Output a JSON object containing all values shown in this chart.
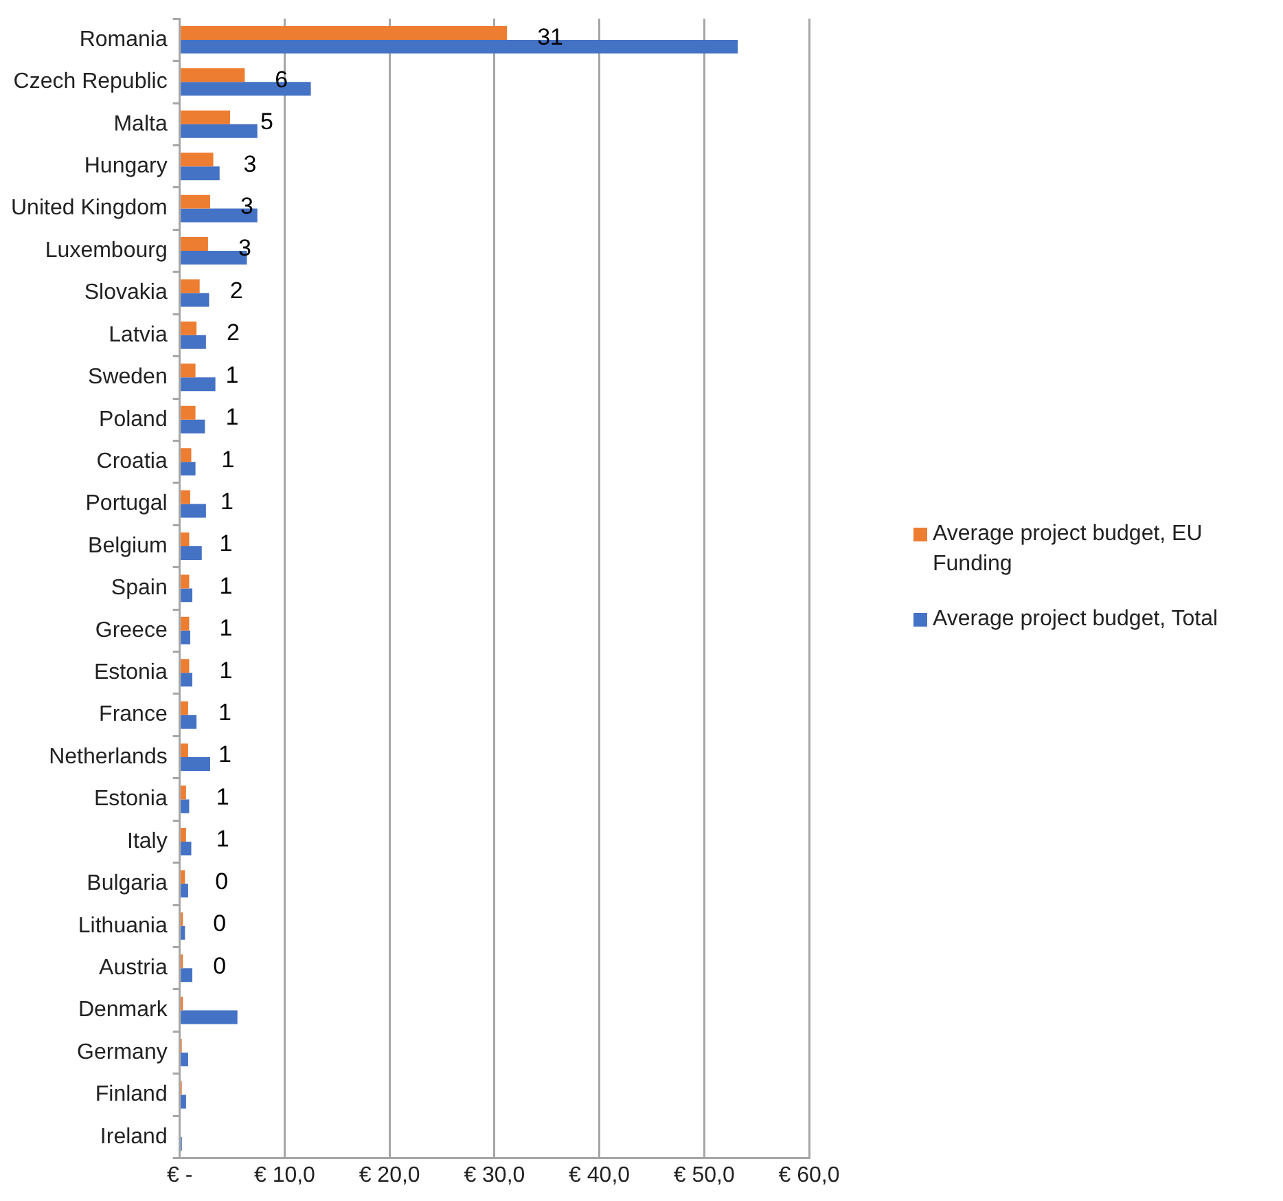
{
  "chart_data": {
    "type": "bar",
    "orientation": "horizontal",
    "categories": [
      "Romania",
      "Czech Republic",
      "Malta",
      "Hungary",
      "United Kingdom",
      "Luxembourg",
      "Slovakia",
      "Latvia",
      "Sweden",
      "Poland",
      "Croatia",
      "Portugal",
      "Belgium",
      "Spain",
      "Greece",
      "Estonia",
      "France",
      "Netherlands",
      "Estonia",
      "Italy",
      "Bulgaria",
      "Lithuania",
      "Austria",
      "Denmark",
      "Germany",
      "Finland",
      "Ireland"
    ],
    "series": [
      {
        "name": "Average project budget, EU Funding",
        "color": "#ed7d31",
        "values": [
          31.2,
          6.2,
          4.8,
          3.2,
          2.9,
          2.7,
          1.9,
          1.6,
          1.5,
          1.5,
          1.1,
          1.0,
          0.9,
          0.9,
          0.9,
          0.9,
          0.8,
          0.8,
          0.6,
          0.6,
          0.5,
          0.3,
          0.3,
          0.3,
          0.2,
          0.2,
          0
        ],
        "value_labels": [
          "31",
          "6",
          "5",
          "3",
          "3",
          "3",
          "2",
          "2",
          "1",
          "1",
          "1",
          "1",
          "1",
          "1",
          "1",
          "1",
          "1",
          "1",
          "1",
          "1",
          "0",
          "0",
          "0",
          null,
          null,
          null,
          null
        ]
      },
      {
        "name": "Average project budget, Total",
        "color": "#4472c4",
        "values": [
          53.2,
          12.5,
          7.4,
          3.8,
          7.4,
          6.4,
          2.8,
          2.5,
          3.4,
          2.4,
          1.5,
          2.5,
          2.1,
          1.2,
          1.0,
          1.2,
          1.6,
          2.9,
          0.9,
          1.1,
          0.8,
          0.5,
          1.2,
          5.5,
          0.8,
          0.6,
          0.2
        ]
      }
    ],
    "xlim": [
      0,
      60
    ],
    "xticks": [
      {
        "value": 0,
        "label": "€ -"
      },
      {
        "value": 10,
        "label": "€ 10,0"
      },
      {
        "value": 20,
        "label": "€ 20,0"
      },
      {
        "value": 30,
        "label": "€ 30,0"
      },
      {
        "value": 40,
        "label": "€ 40,0"
      },
      {
        "value": 50,
        "label": "€ 50,0"
      },
      {
        "value": 60,
        "label": "€ 60,0"
      }
    ],
    "grid": "x",
    "legend": "right"
  }
}
